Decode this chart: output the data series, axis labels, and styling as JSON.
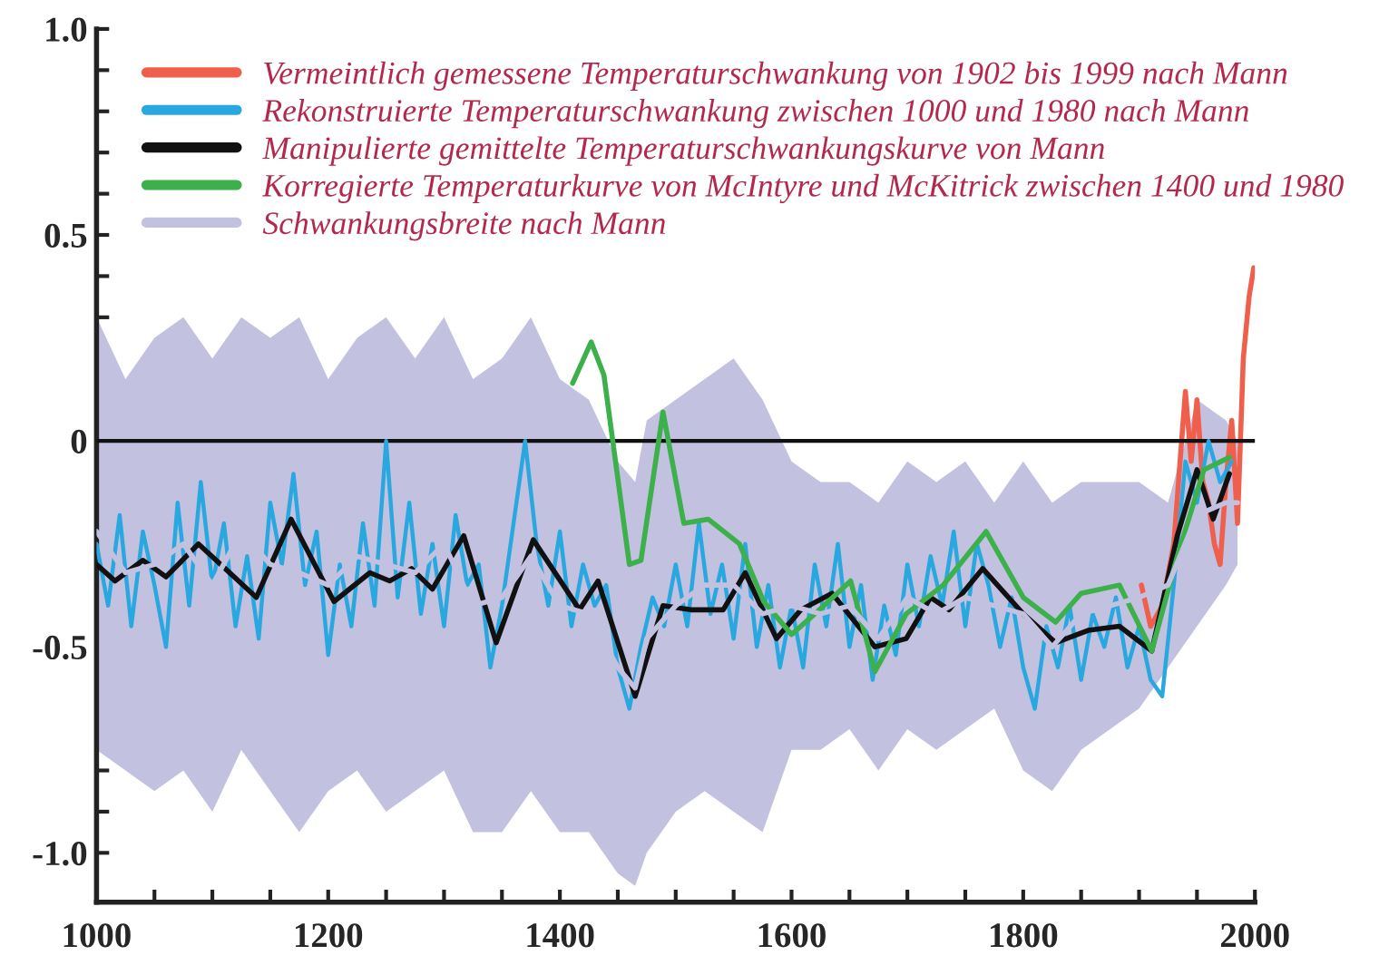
{
  "chart_data": {
    "type": "line",
    "xlim": [
      1000,
      2000
    ],
    "ylim": [
      -1.12,
      1.0
    ],
    "xticks": [
      1000,
      {
        "value": 1050,
        "label": null
      },
      {
        "value": 1100,
        "label": null
      },
      {
        "value": 1150,
        "label": null
      },
      1200,
      {
        "value": 1250,
        "label": null
      },
      {
        "value": 1300,
        "label": null
      },
      {
        "value": 1350,
        "label": null
      },
      1400,
      {
        "value": 1450,
        "label": null
      },
      {
        "value": 1500,
        "label": null
      },
      {
        "value": 1550,
        "label": null
      },
      1600,
      {
        "value": 1650,
        "label": null
      },
      {
        "value": 1700,
        "label": null
      },
      {
        "value": 1750,
        "label": null
      },
      1800,
      {
        "value": 1850,
        "label": null
      },
      {
        "value": 1900,
        "label": null
      },
      {
        "value": 1950,
        "label": null
      },
      2000
    ],
    "yticks": [
      {
        "value": -1.0,
        "label": "-1.0"
      },
      {
        "value": -0.9,
        "label": null
      },
      {
        "value": -0.8,
        "label": null
      },
      {
        "value": -0.7,
        "label": null
      },
      {
        "value": -0.6,
        "label": null
      },
      {
        "value": -0.5,
        "label": "-0.5"
      },
      {
        "value": -0.4,
        "label": null
      },
      {
        "value": -0.3,
        "label": null
      },
      {
        "value": -0.2,
        "label": null
      },
      {
        "value": -0.1,
        "label": null
      },
      0,
      {
        "value": 0.1,
        "label": null
      },
      {
        "value": 0.2,
        "label": null
      },
      {
        "value": 0.3,
        "label": null
      },
      {
        "value": 0.4,
        "label": null
      },
      0.5,
      {
        "value": 0.6,
        "label": null
      },
      {
        "value": 0.7,
        "label": null
      },
      {
        "value": 0.8,
        "label": null
      },
      {
        "value": 0.9,
        "label": null
      },
      {
        "value": 1.0,
        "label": "1.0"
      }
    ],
    "grid": false,
    "legend": "top",
    "ref_lines": [
      {
        "axis": "y",
        "value": 0,
        "color": "#111111"
      }
    ],
    "series": [
      {
        "name": "Vermeintlich gemessene Temperaturschwankung von 1902 bis 1999 nach Mann",
        "color": "#ef5f4c",
        "x": [
          1902,
          1910,
          1920,
          1930,
          1940,
          1945,
          1950,
          1955,
          1960,
          1965,
          1970,
          1975,
          1980,
          1985,
          1990,
          1995,
          1999
        ],
        "values": [
          -0.35,
          -0.45,
          -0.4,
          -0.25,
          0.12,
          -0.05,
          0.1,
          -0.1,
          -0.15,
          -0.25,
          -0.3,
          -0.1,
          0.05,
          -0.2,
          0.2,
          0.35,
          0.42
        ]
      },
      {
        "name": "Rekonstruierte Temperaturschwankung zwischen 1000 und 1980 nach Mann",
        "color": "#29a8e0",
        "x": [
          1000,
          1010,
          1020,
          1030,
          1040,
          1050,
          1060,
          1070,
          1080,
          1090,
          1100,
          1110,
          1120,
          1130,
          1140,
          1150,
          1160,
          1170,
          1180,
          1190,
          1200,
          1210,
          1220,
          1230,
          1240,
          1250,
          1260,
          1270,
          1280,
          1290,
          1300,
          1310,
          1320,
          1330,
          1340,
          1350,
          1360,
          1370,
          1380,
          1390,
          1400,
          1410,
          1420,
          1430,
          1440,
          1450,
          1460,
          1470,
          1480,
          1490,
          1500,
          1510,
          1520,
          1530,
          1540,
          1550,
          1560,
          1570,
          1580,
          1590,
          1600,
          1610,
          1620,
          1630,
          1640,
          1650,
          1660,
          1670,
          1680,
          1690,
          1700,
          1710,
          1720,
          1730,
          1740,
          1750,
          1760,
          1770,
          1780,
          1790,
          1800,
          1810,
          1820,
          1830,
          1840,
          1850,
          1860,
          1870,
          1880,
          1890,
          1900,
          1910,
          1920,
          1930,
          1940,
          1950,
          1960,
          1970,
          1980
        ],
        "values": [
          -0.25,
          -0.4,
          -0.18,
          -0.45,
          -0.22,
          -0.35,
          -0.5,
          -0.15,
          -0.4,
          -0.1,
          -0.35,
          -0.2,
          -0.45,
          -0.28,
          -0.48,
          -0.15,
          -0.3,
          -0.08,
          -0.35,
          -0.22,
          -0.52,
          -0.3,
          -0.45,
          -0.2,
          -0.4,
          0.0,
          -0.38,
          -0.15,
          -0.42,
          -0.25,
          -0.45,
          -0.18,
          -0.35,
          -0.3,
          -0.55,
          -0.4,
          -0.2,
          0.0,
          -0.25,
          -0.4,
          -0.22,
          -0.45,
          -0.3,
          -0.4,
          -0.35,
          -0.55,
          -0.65,
          -0.5,
          -0.38,
          -0.45,
          -0.3,
          -0.45,
          -0.2,
          -0.42,
          -0.3,
          -0.48,
          -0.25,
          -0.5,
          -0.35,
          -0.55,
          -0.4,
          -0.55,
          -0.3,
          -0.45,
          -0.25,
          -0.5,
          -0.35,
          -0.58,
          -0.4,
          -0.52,
          -0.3,
          -0.45,
          -0.28,
          -0.4,
          -0.22,
          -0.45,
          -0.25,
          -0.35,
          -0.5,
          -0.38,
          -0.55,
          -0.65,
          -0.45,
          -0.55,
          -0.4,
          -0.58,
          -0.42,
          -0.5,
          -0.38,
          -0.55,
          -0.45,
          -0.58,
          -0.62,
          -0.35,
          -0.05,
          -0.15,
          0.0,
          -0.1,
          -0.05
        ]
      },
      {
        "name": "Manipulierte gemittelte Temperaturschwankungskurve von Mann",
        "color": "#111111",
        "x": [
          1000,
          1016,
          1040,
          1060,
          1088,
          1138,
          1168,
          1205,
          1236,
          1253,
          1272,
          1290,
          1317,
          1345,
          1377,
          1417,
          1433,
          1465,
          1489,
          1513,
          1541,
          1560,
          1587,
          1608,
          1635,
          1672,
          1699,
          1720,
          1736,
          1765,
          1800,
          1828,
          1856,
          1883,
          1911,
          1933,
          1950,
          1964,
          1978
        ],
        "values": [
          -0.3,
          -0.34,
          -0.29,
          -0.33,
          -0.25,
          -0.38,
          -0.19,
          -0.39,
          -0.32,
          -0.34,
          -0.31,
          -0.36,
          -0.23,
          -0.49,
          -0.24,
          -0.41,
          -0.34,
          -0.62,
          -0.4,
          -0.41,
          -0.41,
          -0.32,
          -0.48,
          -0.41,
          -0.37,
          -0.5,
          -0.48,
          -0.38,
          -0.41,
          -0.31,
          -0.42,
          -0.49,
          -0.46,
          -0.45,
          -0.51,
          -0.23,
          -0.07,
          -0.19,
          -0.08
        ]
      },
      {
        "name": "Korregierte Temperaturkurve von McIntyre und McKitrick zwischen 1400 und 1980",
        "color": "#3cb04a",
        "x": [
          1411,
          1427,
          1438,
          1449,
          1460,
          1470,
          1489,
          1507,
          1528,
          1555,
          1576,
          1600,
          1624,
          1651,
          1672,
          1699,
          1731,
          1768,
          1800,
          1828,
          1850,
          1883,
          1911,
          1933,
          1956,
          1978
        ],
        "values": [
          0.14,
          0.24,
          0.16,
          -0.07,
          -0.3,
          -0.29,
          0.07,
          -0.2,
          -0.19,
          -0.25,
          -0.39,
          -0.47,
          -0.41,
          -0.34,
          -0.56,
          -0.42,
          -0.35,
          -0.22,
          -0.38,
          -0.44,
          -0.37,
          -0.35,
          -0.51,
          -0.28,
          -0.07,
          -0.04
        ]
      },
      {
        "name": "Schwankungsbreite nach Mann",
        "color": "#c3c1e0",
        "type": "line",
        "x": [
          1000,
          1025,
          1050,
          1075,
          1100,
          1125,
          1150,
          1175,
          1200,
          1225,
          1250,
          1275,
          1300,
          1325,
          1350,
          1375,
          1400,
          1425,
          1450,
          1465,
          1475,
          1500,
          1525,
          1550,
          1575,
          1600,
          1625,
          1650,
          1675,
          1700,
          1725,
          1750,
          1775,
          1800,
          1825,
          1850,
          1875,
          1900,
          1925,
          1950,
          1975,
          1985
        ],
        "lower": [
          -0.75,
          -0.8,
          -0.85,
          -0.8,
          -0.9,
          -0.75,
          -0.85,
          -0.95,
          -0.85,
          -0.8,
          -0.9,
          -0.85,
          -0.8,
          -0.95,
          -0.95,
          -0.85,
          -0.95,
          -0.95,
          -1.05,
          -1.08,
          -1.0,
          -0.9,
          -0.85,
          -0.9,
          -0.95,
          -0.75,
          -0.75,
          -0.7,
          -0.8,
          -0.7,
          -0.75,
          -0.7,
          -0.65,
          -0.8,
          -0.85,
          -0.75,
          -0.7,
          -0.65,
          -0.55,
          -0.45,
          -0.35,
          -0.3
        ],
        "values": [
          -0.22,
          -0.32,
          -0.3,
          -0.25,
          -0.35,
          -0.22,
          -0.3,
          -0.32,
          -0.35,
          -0.28,
          -0.3,
          -0.32,
          -0.25,
          -0.4,
          -0.38,
          -0.28,
          -0.4,
          -0.42,
          -0.55,
          -0.6,
          -0.48,
          -0.4,
          -0.35,
          -0.35,
          -0.42,
          -0.4,
          -0.42,
          -0.4,
          -0.48,
          -0.38,
          -0.42,
          -0.38,
          -0.4,
          -0.42,
          -0.5,
          -0.42,
          -0.4,
          -0.38,
          -0.35,
          -0.18,
          -0.15,
          -0.15
        ],
        "upper": [
          0.3,
          0.15,
          0.25,
          0.3,
          0.2,
          0.3,
          0.25,
          0.3,
          0.15,
          0.25,
          0.3,
          0.2,
          0.3,
          0.15,
          0.2,
          0.3,
          0.15,
          0.1,
          -0.05,
          -0.1,
          0.05,
          0.1,
          0.15,
          0.2,
          0.1,
          -0.05,
          -0.1,
          -0.1,
          -0.15,
          -0.05,
          -0.1,
          -0.05,
          -0.15,
          -0.05,
          -0.15,
          -0.1,
          -0.1,
          -0.1,
          -0.15,
          0.1,
          0.05,
          0.0
        ]
      }
    ]
  }
}
